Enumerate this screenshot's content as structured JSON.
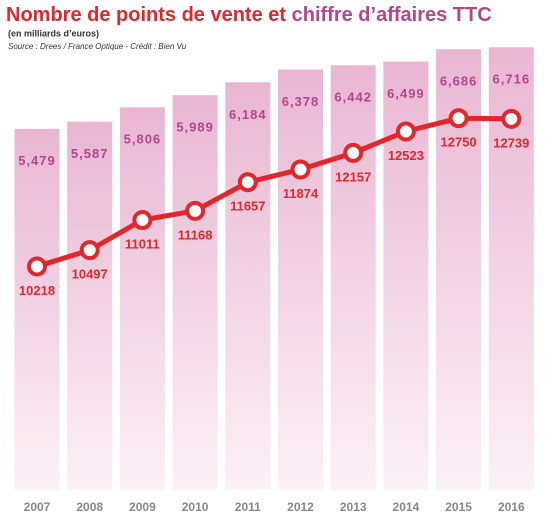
{
  "chart_data": {
    "type": "bar",
    "title": [
      "Nombre de points de vente et",
      "chiffre d’affaires TTC"
    ],
    "subtitle": "(en milliards d’euros)",
    "source": "Source : Drees / France Optique - Crédit : Bien Vu",
    "categories": [
      "2007",
      "2008",
      "2009",
      "2010",
      "2011",
      "2012",
      "2013",
      "2014",
      "2015",
      "2016"
    ],
    "ylim": [
      0,
      6.75
    ],
    "y2lim": [
      6400,
      14000
    ],
    "series": [
      {
        "type": "bar",
        "color": "#e7b5d0",
        "values": [
          5.479,
          5.587,
          5.806,
          5.989,
          6.184,
          6.378,
          6.442,
          6.499,
          6.686,
          6.716
        ],
        "value_labels": [
          "5,479",
          "5,587",
          "5,806",
          "5,989",
          "6,184",
          "6,378",
          "6,442",
          "6,499",
          "6,686",
          "6,716"
        ]
      },
      {
        "type": "line",
        "axis": "y2",
        "color": "#e3262b",
        "values": [
          10218,
          10497,
          11011,
          11168,
          11657,
          11874,
          12157,
          12523,
          12750,
          12739
        ]
      }
    ]
  }
}
